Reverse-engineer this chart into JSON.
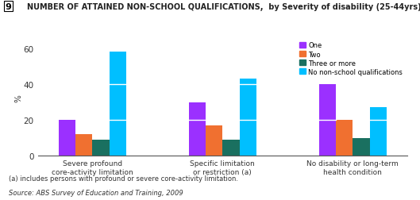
{
  "title": "NUMBER OF ATTAINED NON-SCHOOL QUALIFICATIONS,  by Severity of disability (25-44yrs), 2009",
  "title_num": "9",
  "ylabel": "%",
  "ylim": [
    0,
    65
  ],
  "yticks": [
    0,
    20,
    40,
    60
  ],
  "categories": [
    "Severe profound\ncore-activity limitation",
    "Specific limitation\nor restriction (a)",
    "No disability or long-term\nhealth condition"
  ],
  "series_names": [
    "One",
    "Two",
    "Three or more",
    "No non-school qualifications"
  ],
  "series_values": {
    "One": [
      20,
      30,
      40
    ],
    "Two": [
      12,
      17,
      20
    ],
    "Three or more": [
      9,
      9,
      10
    ],
    "No non-school qualifications": [
      58,
      43,
      27
    ]
  },
  "colors": {
    "One": "#9B30FF",
    "Two": "#F07030",
    "Three or more": "#1A7060",
    "No non-school qualifications": "#00BFFF"
  },
  "bar_width": 0.13,
  "footnote": "(a) includes persons with profound or severe core-activity limitation.",
  "source": "Source: ABS Survey of Education and Training, 2009",
  "background_color": "#ffffff"
}
